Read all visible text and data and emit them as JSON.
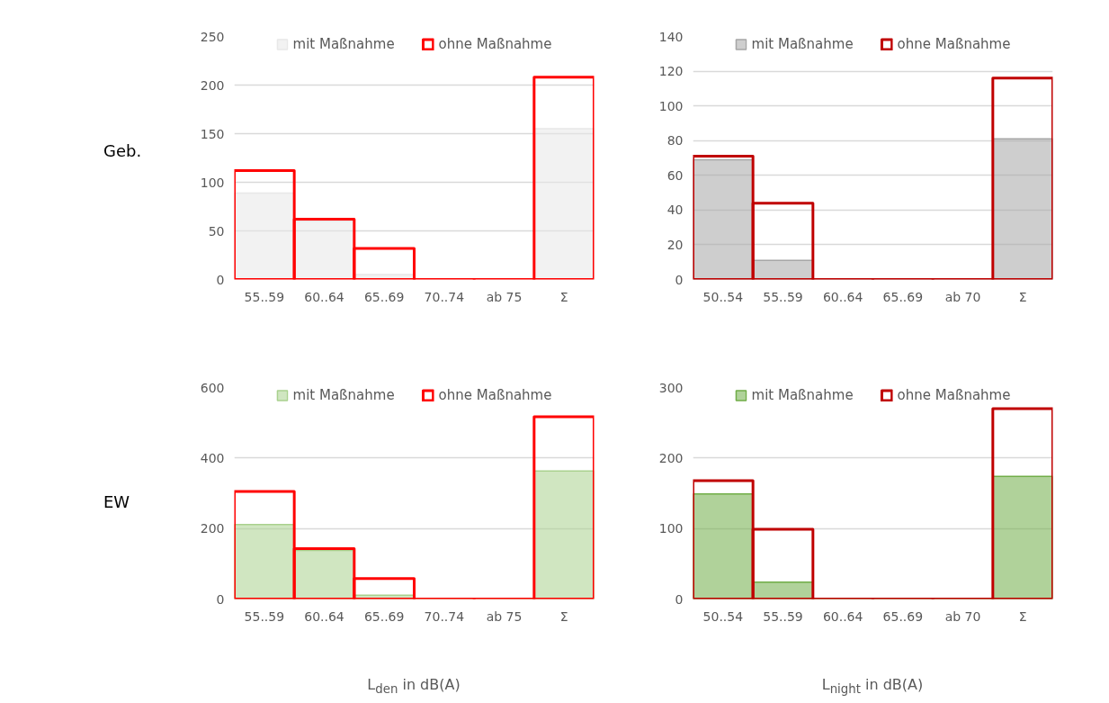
{
  "chart_data": [
    {
      "type": "bar",
      "annotations": [
        "Geb."
      ],
      "categories": [
        "55..59",
        "60..64",
        "65..69",
        "70..74",
        "ab 75",
        "Σ"
      ],
      "ylim": [
        0,
        250
      ],
      "yticks": [
        0,
        50,
        100,
        150,
        200,
        250
      ],
      "grid": "y",
      "legend": "top",
      "series": [
        {
          "name": "mit Maßnahme",
          "color": "#e8e8e8",
          "values": [
            89,
            60,
            5,
            0,
            0,
            155
          ]
        },
        {
          "name": "ohne Maßnahme",
          "color": "#ff0000",
          "values": [
            112,
            62,
            32,
            0,
            0,
            208
          ]
        }
      ]
    },
    {
      "type": "bar",
      "categories": [
        "50..54",
        "55..59",
        "60..64",
        "65..69",
        "ab 70",
        "Σ"
      ],
      "ylim": [
        0,
        140
      ],
      "yticks": [
        0,
        20,
        40,
        60,
        80,
        100,
        120,
        140
      ],
      "grid": "y",
      "legend": "top",
      "series": [
        {
          "name": "mit Maßnahme",
          "color": "#a6a6a6",
          "values": [
            69,
            11,
            0,
            0,
            0,
            81
          ]
        },
        {
          "name": "ohne Maßnahme",
          "color": "#c00000",
          "values": [
            71,
            44,
            0,
            0,
            0,
            116
          ]
        }
      ]
    },
    {
      "type": "bar",
      "annotations": [
        "EW"
      ],
      "xlabel": "L$_{den}$ in dB(A)",
      "categories": [
        "55..59",
        "60..64",
        "65..69",
        "70..74",
        "ab 75",
        "Σ"
      ],
      "ylim": [
        0,
        600
      ],
      "yticks": [
        0,
        200,
        400,
        600
      ],
      "grid": "y",
      "legend": "top",
      "series": [
        {
          "name": "mit Maßnahme",
          "color": "#a9d18e",
          "values": [
            211,
            138,
            11,
            0,
            0,
            363
          ]
        },
        {
          "name": "ohne Maßnahme",
          "color": "#ff0000",
          "values": [
            305,
            143,
            58,
            0,
            0,
            517
          ]
        }
      ]
    },
    {
      "type": "bar",
      "xlabel": "L$_{night}$ in dB(A)",
      "categories": [
        "50..54",
        "55..59",
        "60..64",
        "65..69",
        "ab 70",
        "Σ"
      ],
      "ylim": [
        0,
        300
      ],
      "yticks": [
        0,
        100,
        200,
        300
      ],
      "grid": "y",
      "legend": "top",
      "series": [
        {
          "name": "mit Maßnahme",
          "color": "#70ad47",
          "values": [
            149,
            24,
            0,
            0,
            0,
            174
          ]
        },
        {
          "name": "ohne Maßnahme",
          "color": "#c00000",
          "values": [
            168,
            99,
            0,
            0,
            0,
            270
          ]
        }
      ]
    }
  ]
}
